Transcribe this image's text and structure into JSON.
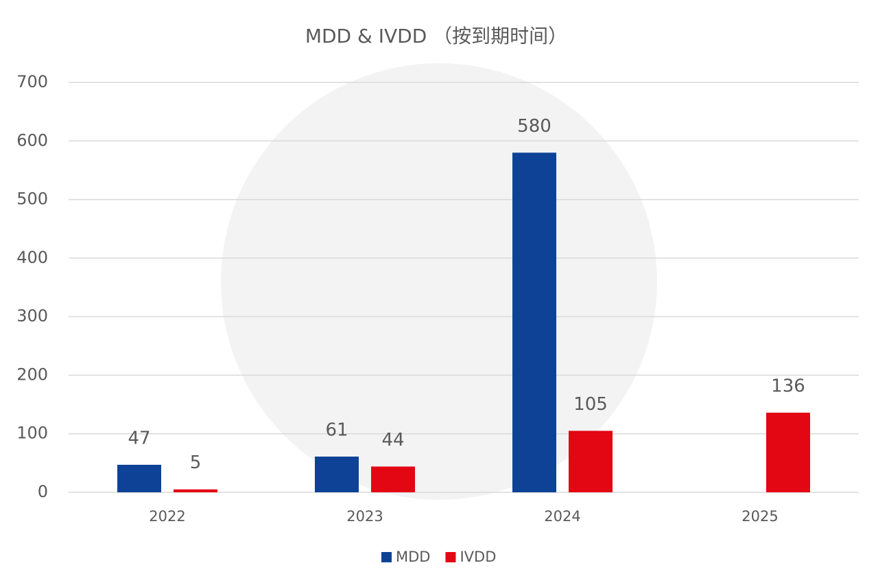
{
  "chart_data": {
    "type": "bar",
    "title": "MDD & IVDD （按到期时间）",
    "categories": [
      "2022",
      "2023",
      "2024",
      "2025"
    ],
    "series": [
      {
        "name": "MDD",
        "color": "#0d4296",
        "values": [
          47,
          61,
          580,
          null
        ]
      },
      {
        "name": "IVDD",
        "color": "#e30613",
        "values": [
          5,
          44,
          105,
          136
        ]
      }
    ],
    "ylim": [
      0,
      700
    ],
    "yticks": [
      0,
      100,
      200,
      300,
      400,
      500,
      600,
      700
    ],
    "grid": true,
    "legend": "bottom"
  }
}
